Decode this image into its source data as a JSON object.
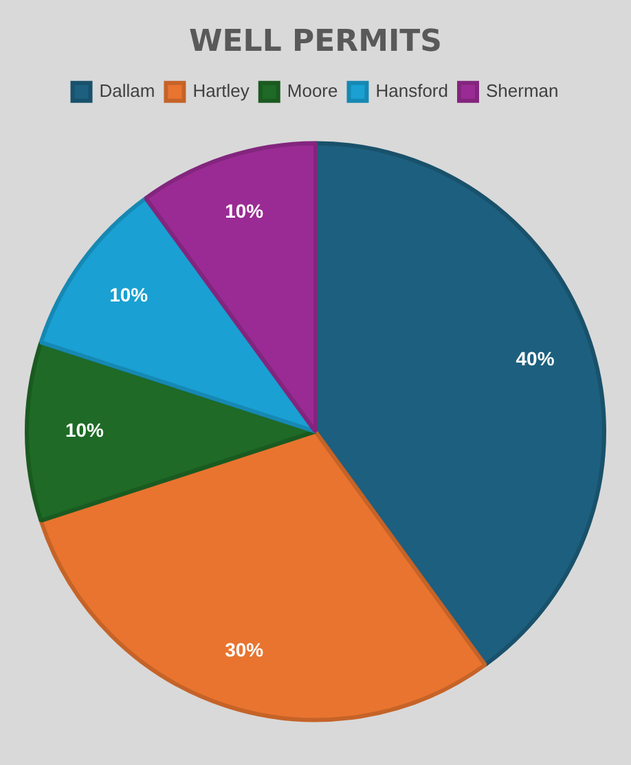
{
  "chart_data": {
    "type": "pie",
    "title": "WELL PERMITS",
    "categories": [
      "Dallam",
      "Hartley",
      "Moore",
      "Hansford",
      "Sherman"
    ],
    "values": [
      40,
      30,
      10,
      10,
      10
    ],
    "value_labels": [
      "40%",
      "30%",
      "10%",
      "10%",
      "10%"
    ],
    "colors": [
      "#1d5f7e",
      "#e8742f",
      "#1e6a26",
      "#1aa0d2",
      "#9a2b94"
    ],
    "legend": "top"
  }
}
